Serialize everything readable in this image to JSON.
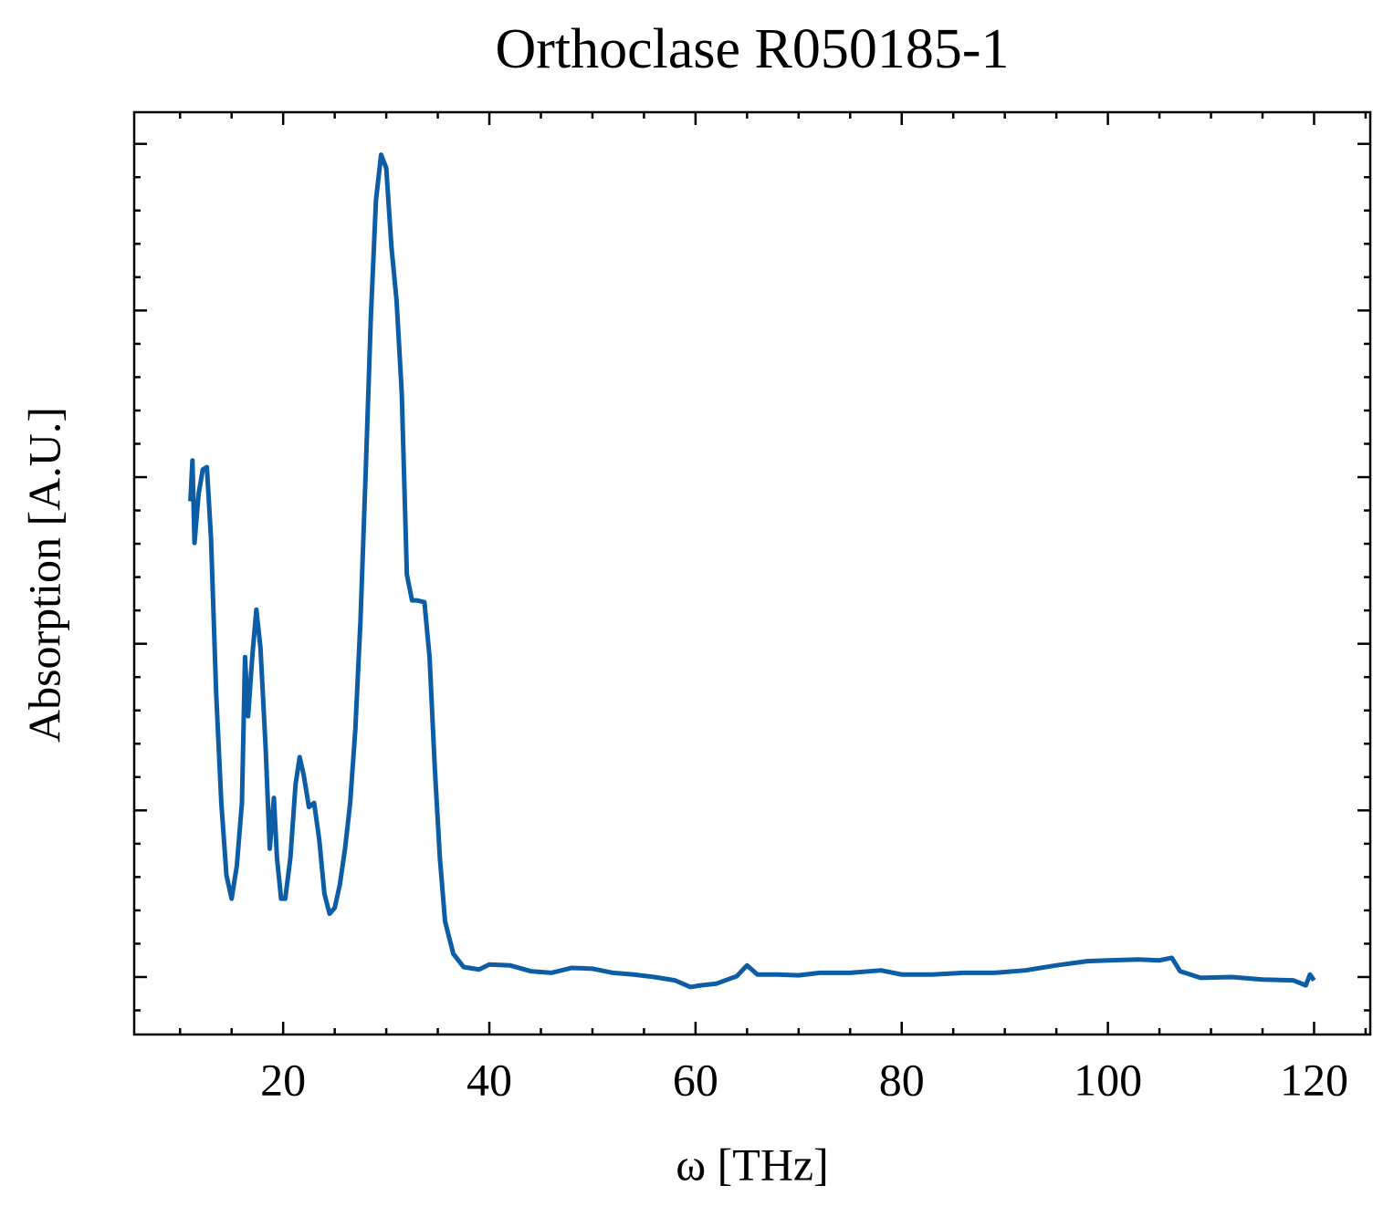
{
  "chart_data": {
    "type": "line",
    "title": "Orthoclase R050185-1",
    "x_label": "ω [THz]",
    "y_label": "Absorption [A.U.]",
    "series": [
      {
        "name": "Orthoclase R050185-1",
        "color": "#0c5da5",
        "x": [
          11.0,
          11.2,
          11.4,
          11.8,
          12.2,
          12.6,
          13.0,
          13.5,
          14.0,
          14.5,
          15.0,
          15.5,
          16.0,
          16.3,
          16.6,
          17.0,
          17.4,
          17.8,
          18.3,
          18.7,
          19.1,
          19.4,
          19.8,
          20.2,
          20.7,
          21.2,
          21.6,
          22.0,
          22.5,
          23.0,
          23.5,
          24.0,
          24.5,
          25.0,
          25.5,
          26.0,
          26.5,
          27.0,
          27.5,
          28.0,
          28.5,
          29.0,
          29.5,
          30.0,
          30.5,
          31.0,
          31.5,
          32.0,
          32.5,
          33.0,
          33.7,
          34.2,
          34.7,
          35.2,
          35.7,
          36.5,
          37.5,
          39,
          40,
          42,
          44,
          46,
          48,
          50,
          52,
          54,
          56,
          58,
          59.5,
          60.5,
          62,
          64,
          65,
          66,
          68,
          70,
          72,
          75,
          78,
          80,
          83,
          86,
          89,
          92,
          95,
          98,
          100,
          103,
          105,
          106.2,
          107,
          109,
          112,
          115,
          118,
          119.2,
          119.6,
          120
        ],
        "values": [
          0.571,
          0.62,
          0.521,
          0.58,
          0.609,
          0.612,
          0.527,
          0.341,
          0.209,
          0.122,
          0.094,
          0.133,
          0.209,
          0.384,
          0.313,
          0.384,
          0.441,
          0.395,
          0.275,
          0.154,
          0.215,
          0.143,
          0.094,
          0.094,
          0.143,
          0.231,
          0.264,
          0.242,
          0.204,
          0.209,
          0.165,
          0.1,
          0.076,
          0.083,
          0.111,
          0.154,
          0.209,
          0.297,
          0.428,
          0.604,
          0.79,
          0.932,
          0.987,
          0.971,
          0.877,
          0.812,
          0.702,
          0.483,
          0.452,
          0.452,
          0.45,
          0.384,
          0.253,
          0.143,
          0.067,
          0.028,
          0.012,
          0.009,
          0.015,
          0.014,
          0.007,
          0.005,
          0.011,
          0.01,
          0.005,
          0.003,
          0.0,
          -0.004,
          -0.012,
          -0.01,
          -0.008,
          0.001,
          0.014,
          0.003,
          0.003,
          0.002,
          0.005,
          0.005,
          0.008,
          0.003,
          0.003,
          0.005,
          0.005,
          0.008,
          0.014,
          0.019,
          0.02,
          0.021,
          0.02,
          0.023,
          0.007,
          -0.001,
          0.0,
          -0.003,
          -0.004,
          -0.01,
          0.003,
          -0.004
        ]
      }
    ],
    "xlim": [
      5.55,
      125.45
    ],
    "xticks": [
      20,
      40,
      60,
      80,
      100,
      120
    ],
    "ylim": [
      -0.069,
      1.038
    ],
    "yticks": [
      0,
      0.2,
      0.4,
      0.6,
      0.8,
      1.0
    ],
    "ytick_labels": false,
    "legend": false,
    "grid": false
  }
}
